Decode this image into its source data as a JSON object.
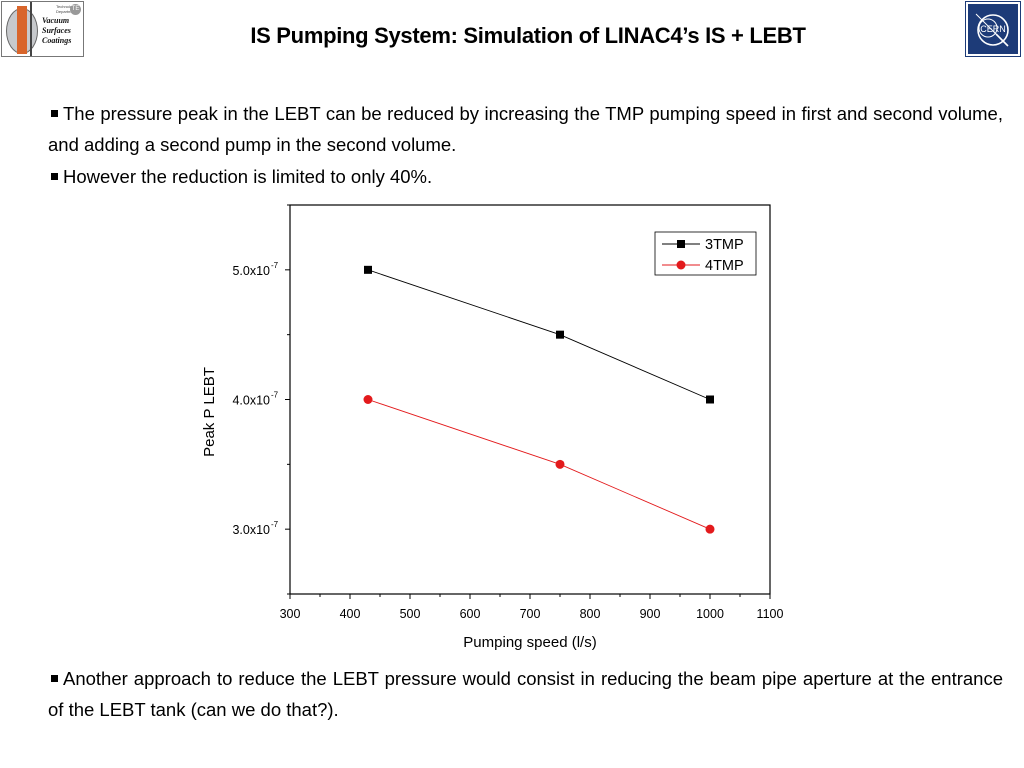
{
  "header": {
    "title": "IS Pumping System: Simulation of LINAC4’s IS + LEBT",
    "left_logo": {
      "text_lines": [
        "Vacuum",
        "Surfaces",
        "Coatings"
      ],
      "small_text": "Technology Department",
      "badge": "TE"
    },
    "right_logo": {
      "text": "CERN"
    }
  },
  "body": {
    "bullet1": "The pressure peak in the LEBT can be reduced by increasing the TMP pumping speed in first and second volume, and  adding a second pump in the second volume.",
    "bullet2": "However the reduction is limited to only 40%.",
    "bullet3": "Another approach to reduce the LEBT pressure would consist in reducing the beam pipe aperture at the entrance of the LEBT tank (can we do that?)."
  },
  "chart_data": {
    "type": "line",
    "title": "",
    "xlabel": "Pumping speed (l/s)",
    "ylabel": "Peak P LEBT",
    "xlim": [
      300,
      1100
    ],
    "ylim": [
      2.5e-07,
      5.5e-07
    ],
    "x_ticks": [
      300,
      400,
      500,
      600,
      700,
      800,
      900,
      1000,
      1100
    ],
    "y_ticks": [
      {
        "value": 3e-07,
        "mantissa": "3.0x10",
        "exp": "-7"
      },
      {
        "value": 4e-07,
        "mantissa": "4.0x10",
        "exp": "-7"
      },
      {
        "value": 5e-07,
        "mantissa": "5.0x10",
        "exp": "-7"
      }
    ],
    "grid": false,
    "legend_position": "top-right",
    "series": [
      {
        "name": "3TMP",
        "color": "#000000",
        "marker": "square",
        "x": [
          430,
          750,
          1000
        ],
        "y": [
          5e-07,
          4.5e-07,
          4e-07
        ]
      },
      {
        "name": "4TMP",
        "color": "#e31a1c",
        "marker": "circle",
        "x": [
          430,
          750,
          1000
        ],
        "y": [
          4e-07,
          3.5e-07,
          3e-07
        ]
      }
    ]
  }
}
